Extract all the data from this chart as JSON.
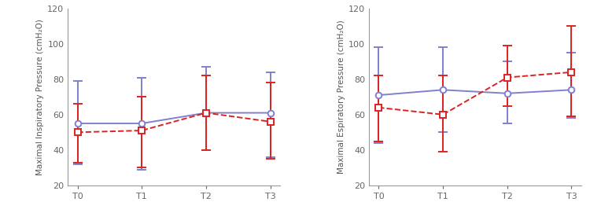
{
  "left": {
    "title": "Maximal Inspiratory Pressure (cmH₂O)",
    "x_labels": [
      "T0",
      "T1",
      "T2",
      "T3"
    ],
    "blue_y": [
      55,
      55,
      61,
      61
    ],
    "blue_err_lo": [
      23,
      26,
      21,
      25
    ],
    "blue_err_hi": [
      24,
      26,
      26,
      23
    ],
    "red_y": [
      50,
      51,
      61,
      56
    ],
    "red_err_lo": [
      17,
      21,
      21,
      21
    ],
    "red_err_hi": [
      16,
      19,
      21,
      22
    ],
    "ylim": [
      20,
      120
    ],
    "yticks": [
      20,
      40,
      60,
      80,
      100,
      120
    ]
  },
  "right": {
    "title": "Maximal Espiratory Pressure (cmH₂O)",
    "x_labels": [
      "T0",
      "T1",
      "T2",
      "T3"
    ],
    "blue_y": [
      71,
      74,
      72,
      74
    ],
    "blue_err_lo": [
      27,
      24,
      17,
      16
    ],
    "blue_err_hi": [
      27,
      24,
      18,
      21
    ],
    "red_y": [
      64,
      60,
      81,
      84
    ],
    "red_err_lo": [
      19,
      21,
      16,
      25
    ],
    "red_err_hi": [
      18,
      22,
      18,
      26
    ],
    "ylim": [
      20,
      120
    ],
    "yticks": [
      20,
      40,
      60,
      80,
      100,
      120
    ]
  },
  "blue_color": "#8080CC",
  "red_color": "#DD2222",
  "line_width": 1.4,
  "marker_size": 5.5,
  "cap_size": 4,
  "spine_color": "#999999",
  "tick_color": "#666666",
  "label_color": "#555555",
  "ylabel_fontsize": 7.5,
  "tick_fontsize": 8
}
